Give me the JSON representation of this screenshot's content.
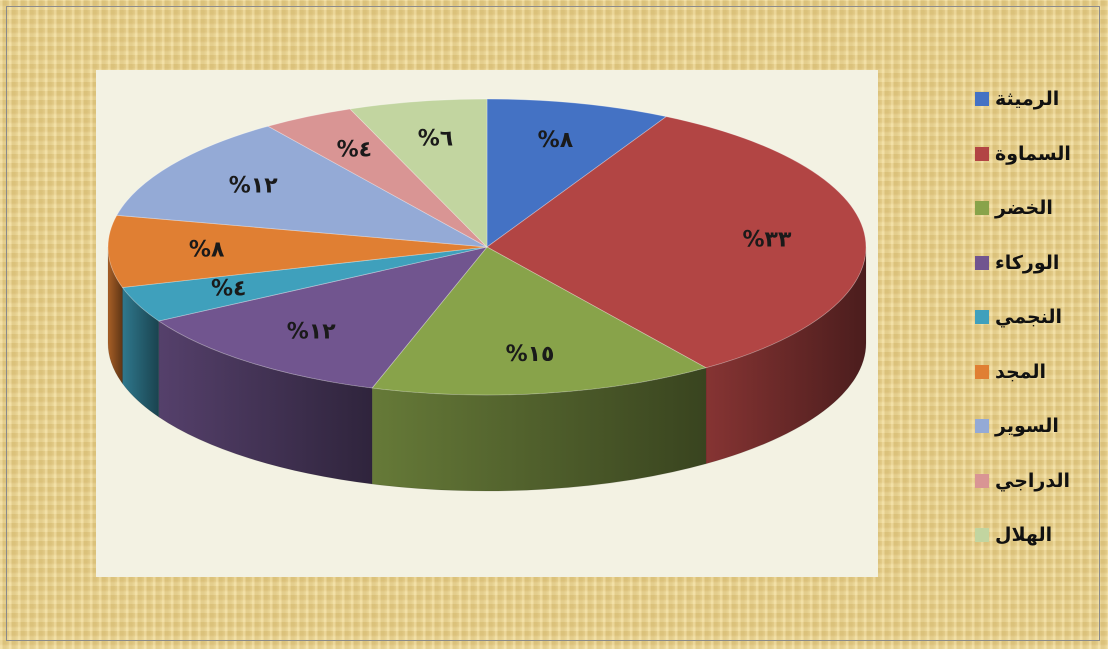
{
  "chart_data": {
    "type": "pie",
    "title": "",
    "style": "3d",
    "legend_position": "right",
    "categories": [
      "الرميثة",
      "السماوة",
      "الخضر",
      "الوركاء",
      "النجمي",
      "المجد",
      "السوير",
      "الدراجي",
      "الهلال"
    ],
    "values": [
      8,
      33,
      15,
      12,
      4,
      8,
      12,
      4,
      6
    ],
    "data_labels": [
      "%٨",
      "%٣٣",
      "%١٥",
      "%١٢",
      "%٤",
      "%٨",
      "%١٢",
      "%٤",
      "%٦"
    ],
    "colors": [
      "#4472c4",
      "#b24544",
      "#88a34a",
      "#71558f",
      "#3fa0bc",
      "#e07f33",
      "#94aad6",
      "#d99594",
      "#c2d5a0"
    ]
  }
}
